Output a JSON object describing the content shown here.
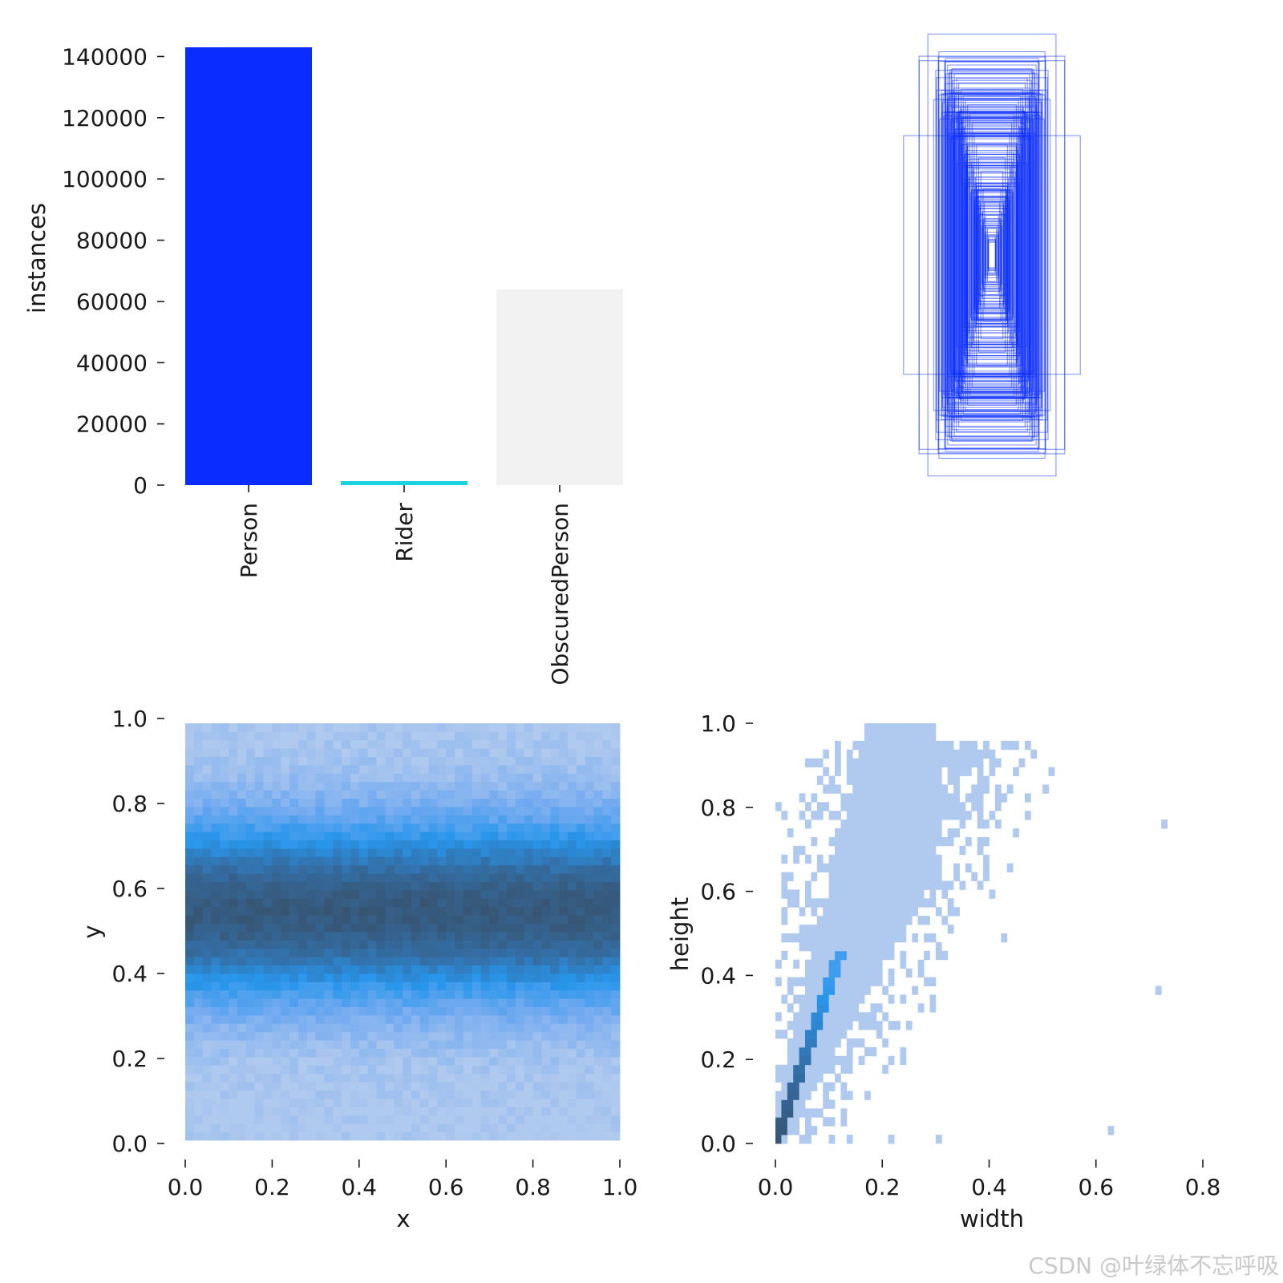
{
  "chart_data": [
    {
      "id": "class-counts",
      "type": "bar",
      "categories": [
        "Person",
        "Rider",
        "ObscuredPerson"
      ],
      "values": [
        143000,
        1200,
        64000
      ],
      "colors": [
        "#0a2cff",
        "#19d3e0",
        "#f2f2f2"
      ],
      "ylabel": "instances",
      "xlabel": "",
      "ylim": [
        0,
        143000
      ],
      "yticks": [
        "0",
        "20000",
        "40000",
        "60000",
        "80000",
        "100000",
        "120000",
        "140000"
      ],
      "ytick_values": [
        0,
        20000,
        40000,
        60000,
        80000,
        100000,
        120000,
        140000
      ]
    },
    {
      "id": "box-shapes",
      "type": "scatter",
      "description_series": "box width/height pairs drawn centered",
      "boxes": [
        [
          0.29,
          1.0
        ],
        [
          0.4,
          0.54
        ],
        [
          0.33,
          0.9
        ],
        [
          0.24,
          0.92
        ],
        [
          0.21,
          0.89
        ],
        [
          0.2,
          0.86
        ],
        [
          0.19,
          0.84
        ],
        [
          0.17,
          0.82
        ],
        [
          0.16,
          0.8
        ],
        [
          0.15,
          0.78
        ],
        [
          0.14,
          0.75
        ],
        [
          0.13,
          0.72
        ],
        [
          0.12,
          0.7
        ],
        [
          0.11,
          0.68
        ],
        [
          0.1,
          0.64
        ],
        [
          0.09,
          0.6
        ],
        [
          0.08,
          0.55
        ],
        [
          0.07,
          0.5
        ],
        [
          0.06,
          0.44
        ],
        [
          0.05,
          0.38
        ],
        [
          0.04,
          0.3
        ],
        [
          0.035,
          0.24
        ],
        [
          0.03,
          0.18
        ],
        [
          0.02,
          0.12
        ],
        [
          0.015,
          0.08
        ]
      ]
    },
    {
      "id": "xy-hist",
      "type": "heatmap",
      "xlabel": "x",
      "ylabel": "y",
      "xlim": [
        0,
        1
      ],
      "ylim": [
        0,
        1
      ],
      "xticks": [
        "0.0",
        "0.2",
        "0.4",
        "0.6",
        "0.8",
        "1.0"
      ],
      "yticks": [
        "0.0",
        "0.2",
        "0.4",
        "0.6",
        "0.8",
        "1.0"
      ],
      "tick_values": [
        0,
        0.2,
        0.4,
        0.6,
        0.8,
        1.0
      ],
      "peak_y": 0.55,
      "spread_y": 0.15
    },
    {
      "id": "wh-hist",
      "type": "heatmap",
      "xlabel": "width",
      "ylabel": "height",
      "xlim": [
        0,
        0.8
      ],
      "ylim": [
        0,
        1
      ],
      "xticks": [
        "0.0",
        "0.2",
        "0.4",
        "0.6",
        "0.8"
      ],
      "xtick_values": [
        0,
        0.2,
        0.4,
        0.6,
        0.8
      ],
      "yticks": [
        "0.0",
        "0.2",
        "0.4",
        "0.6",
        "0.8",
        "1.0"
      ],
      "ytick_values": [
        0,
        0.2,
        0.4,
        0.6,
        0.8,
        1.0
      ],
      "aspect_ratio_ridge": 3.8
    }
  ],
  "watermark": "CSDN @叶绿体不忘呼吸"
}
